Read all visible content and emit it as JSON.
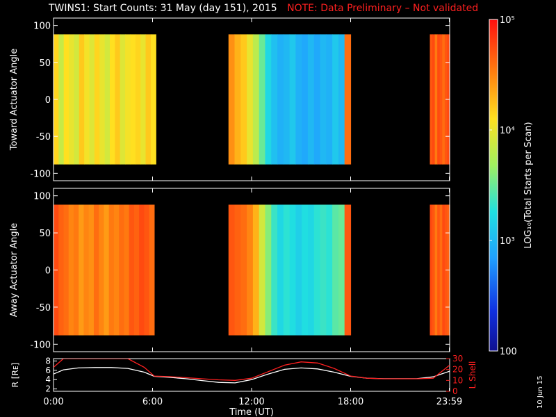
{
  "header": {
    "title": "TWINS1: Start Counts: 31 May (day 151), 2015",
    "note": "NOTE: Data Preliminary – Not validated"
  },
  "stamp": "10 Jun 15",
  "colorbar": {
    "label": "LOG₁₀(Total Starts per Scan)",
    "ticks": [
      "10⁵",
      "10⁴",
      "10³",
      "100"
    ],
    "tick_values": [
      100000,
      10000,
      1000,
      100
    ],
    "range": [
      100,
      100000
    ],
    "scale": "log"
  },
  "time_axis": {
    "label": "Time (UT)",
    "ticks": [
      "0:00",
      "6:00",
      "12:00",
      "18:00",
      "23:59"
    ],
    "tick_hours": [
      0,
      6,
      12,
      18,
      23.98
    ],
    "range": [
      0,
      24
    ]
  },
  "chart_data": [
    {
      "type": "heatmap",
      "ylabel": "Toward Actuator Angle",
      "yticks": [
        "100",
        "50",
        "0",
        "-50",
        "-100"
      ],
      "ytick_values": [
        100,
        50,
        0,
        -50,
        -100
      ],
      "ylim": [
        -110,
        110
      ],
      "xlim": [
        0,
        24
      ],
      "data_extent_deg": [
        -88,
        88
      ],
      "segments": [
        {
          "t_start": 0.0,
          "t_end": 6.2,
          "log_counts": [
            4.15,
            3.85,
            4.1,
            4.0,
            3.9,
            4.2,
            4.05,
            3.95,
            4.15,
            4.0,
            3.9,
            4.1,
            4.2,
            3.95,
            4.05,
            4.1,
            4.15,
            4.0,
            4.2,
            4.1
          ]
        },
        {
          "t_start": 10.6,
          "t_end": 18.0,
          "log_counts": [
            4.45,
            4.3,
            4.2,
            4.0,
            3.8,
            3.5,
            3.2,
            3.05,
            2.95,
            3.0,
            3.1,
            2.95,
            2.9,
            3.0,
            2.9,
            3.0,
            2.95,
            3.1,
            3.0,
            4.6
          ]
        },
        {
          "t_start": 22.8,
          "t_end": 24.0,
          "log_counts": [
            4.7,
            4.75,
            4.55,
            4.75,
            4.7,
            4.6,
            4.7,
            4.75
          ]
        }
      ]
    },
    {
      "type": "heatmap",
      "ylabel": "Away Actuator Angle",
      "yticks": [
        "100",
        "50",
        "0",
        "-50",
        "-100"
      ],
      "ytick_values": [
        100,
        50,
        0,
        -50,
        -100
      ],
      "ylim": [
        -110,
        110
      ],
      "xlim": [
        0,
        24
      ],
      "data_extent_deg": [
        -88,
        88
      ],
      "segments": [
        {
          "t_start": 0.0,
          "t_end": 6.1,
          "log_counts": [
            4.75,
            4.65,
            4.6,
            4.5,
            4.55,
            4.4,
            4.5,
            4.45,
            4.6,
            4.5,
            4.4,
            4.55,
            4.5,
            4.6,
            4.55,
            4.7,
            4.65,
            4.75,
            4.7,
            4.6
          ]
        },
        {
          "t_start": 10.6,
          "t_end": 18.0,
          "log_counts": [
            4.7,
            4.65,
            4.6,
            4.5,
            4.3,
            3.9,
            3.6,
            3.35,
            3.2,
            3.3,
            3.25,
            3.15,
            3.25,
            3.2,
            3.3,
            3.35,
            3.3,
            3.45,
            3.5,
            4.7
          ]
        },
        {
          "t_start": 22.8,
          "t_end": 24.0,
          "log_counts": [
            4.75,
            4.7,
            4.55,
            4.7,
            4.6,
            4.75,
            4.7,
            4.65
          ]
        }
      ]
    },
    {
      "type": "line",
      "ylabel": "R [Rᴇ]",
      "ylabel_right": "L Shell",
      "yticks_left": [
        "8",
        "6",
        "4",
        "2"
      ],
      "ytick_left_values": [
        8,
        6,
        4,
        2
      ],
      "ylim_left": [
        1.5,
        8.5
      ],
      "yticks_right": [
        "30",
        "20",
        "10",
        "0"
      ],
      "ytick_right_values": [
        30,
        20,
        10,
        0
      ],
      "ylim_right": [
        0,
        30
      ],
      "xlim": [
        0,
        24
      ],
      "series": [
        {
          "axis": "left",
          "color": "#ffffff",
          "x": [
            0,
            0.6,
            1.5,
            2.5,
            3.5,
            4.5,
            5.5,
            6.1,
            7,
            8,
            9,
            10,
            11,
            12,
            13,
            14,
            15,
            16,
            17,
            18,
            19,
            20,
            21,
            22,
            23,
            24
          ],
          "y": [
            5.2,
            6.1,
            6.5,
            6.6,
            6.6,
            6.4,
            5.6,
            4.7,
            4.5,
            4.2,
            3.8,
            3.4,
            3.3,
            4.0,
            5.2,
            6.2,
            6.5,
            6.3,
            5.6,
            4.7,
            4.3,
            4.2,
            4.2,
            4.2,
            4.6,
            5.8
          ]
        },
        {
          "axis": "right",
          "color": "#ff2020",
          "x": [
            0,
            0.6,
            1.5,
            4.5,
            5.5,
            6.1,
            7,
            8,
            9,
            10,
            11,
            12,
            13,
            14,
            15,
            16,
            17,
            18,
            19,
            20,
            21,
            22,
            23,
            24
          ],
          "y": [
            22,
            30,
            30,
            30,
            22,
            14,
            13.5,
            12.5,
            11.5,
            10.5,
            10,
            12,
            18,
            24,
            27,
            26,
            21,
            14,
            12,
            11.5,
            11.5,
            11.5,
            12,
            24
          ]
        }
      ]
    }
  ]
}
